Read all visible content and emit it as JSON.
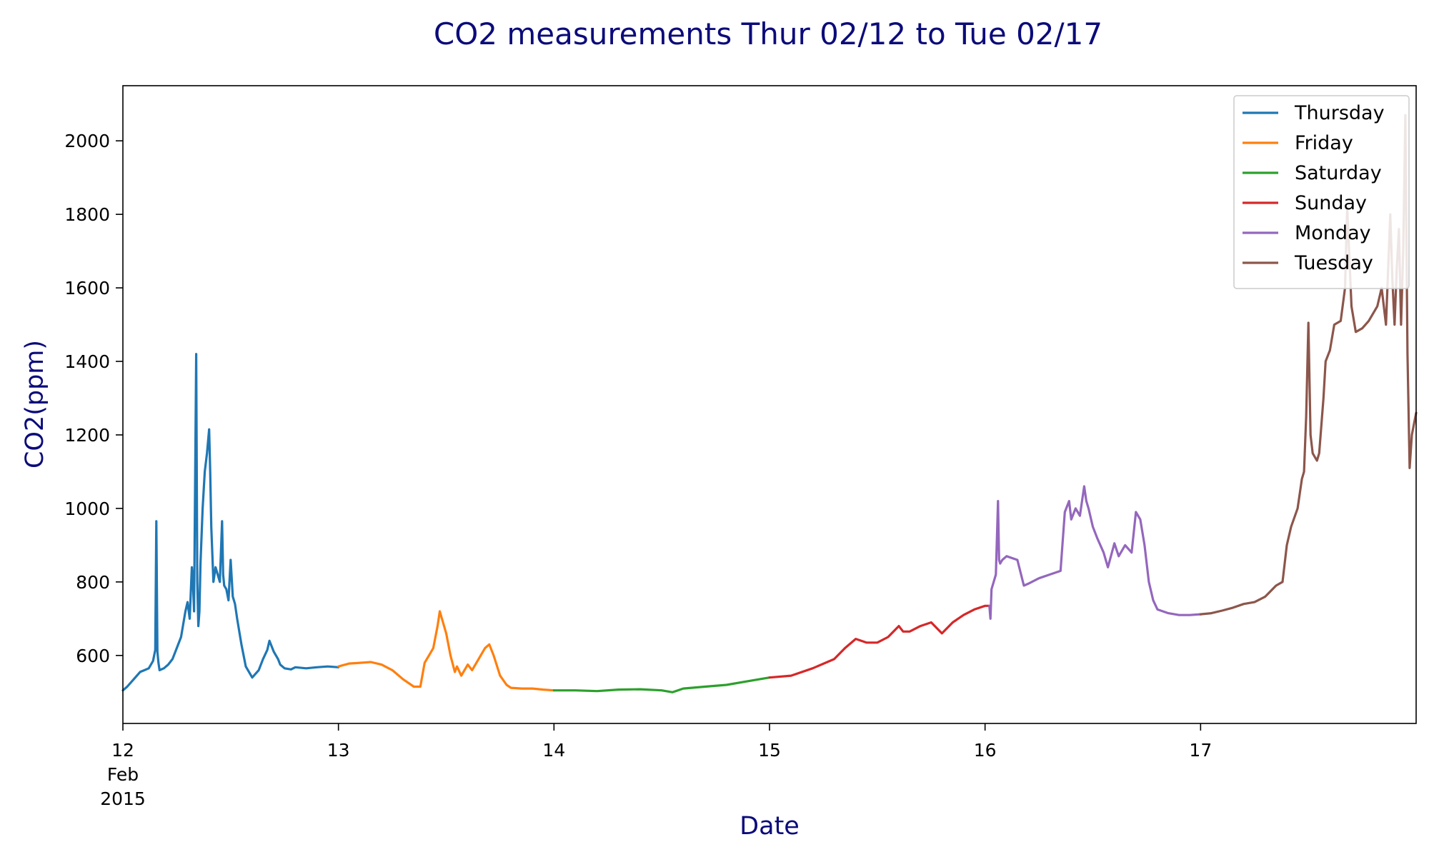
{
  "chart_data": {
    "type": "line",
    "title": "CO2 measurements Thur 02/12 to Tue 02/17",
    "xlabel": "Date",
    "ylabel": "CO2(ppm)",
    "xlim": [
      12.0,
      18.0
    ],
    "ylim": [
      415,
      2150
    ],
    "x_ticks": [
      {
        "value": 12,
        "lines": [
          "12",
          "Feb",
          "2015"
        ]
      },
      {
        "value": 13,
        "lines": [
          "13"
        ]
      },
      {
        "value": 14,
        "lines": [
          "14"
        ]
      },
      {
        "value": 15,
        "lines": [
          "15"
        ]
      },
      {
        "value": 16,
        "lines": [
          "16"
        ]
      },
      {
        "value": 17,
        "lines": [
          "17"
        ]
      }
    ],
    "y_ticks": [
      600,
      800,
      1000,
      1200,
      1400,
      1600,
      1800,
      2000
    ],
    "grid": false,
    "legend_position": "top-right",
    "series": [
      {
        "name": "Thursday",
        "color": "#1f77b4",
        "x": [
          12.0,
          12.02,
          12.05,
          12.08,
          12.1,
          12.12,
          12.14,
          12.15,
          12.155,
          12.16,
          12.165,
          12.17,
          12.19,
          12.21,
          12.23,
          12.25,
          12.27,
          12.29,
          12.3,
          12.31,
          12.32,
          12.325,
          12.33,
          12.34,
          12.345,
          12.35,
          12.355,
          12.36,
          12.37,
          12.38,
          12.39,
          12.4,
          12.405,
          12.41,
          12.42,
          12.43,
          12.44,
          12.45,
          12.46,
          12.465,
          12.47,
          12.48,
          12.49,
          12.5,
          12.51,
          12.515,
          12.52,
          12.53,
          12.55,
          12.57,
          12.6,
          12.63,
          12.65,
          12.67,
          12.68,
          12.7,
          12.72,
          12.73,
          12.75,
          12.78,
          12.8,
          12.85,
          12.9,
          12.95,
          13.0
        ],
        "y": [
          505,
          515,
          535,
          555,
          560,
          565,
          585,
          615,
          965,
          610,
          580,
          560,
          565,
          575,
          590,
          620,
          650,
          720,
          745,
          700,
          840,
          800,
          720,
          1420,
          800,
          680,
          720,
          850,
          1000,
          1100,
          1150,
          1215,
          1100,
          950,
          800,
          840,
          820,
          800,
          965,
          820,
          790,
          780,
          750,
          860,
          760,
          750,
          740,
          700,
          630,
          570,
          540,
          560,
          590,
          615,
          640,
          610,
          590,
          575,
          565,
          562,
          568,
          565,
          568,
          570,
          568
        ]
      },
      {
        "name": "Friday",
        "color": "#ff7f0e",
        "x": [
          13.0,
          13.05,
          13.1,
          13.15,
          13.2,
          13.25,
          13.3,
          13.35,
          13.38,
          13.4,
          13.42,
          13.44,
          13.46,
          13.47,
          13.48,
          13.5,
          13.52,
          13.54,
          13.55,
          13.57,
          13.6,
          13.62,
          13.65,
          13.68,
          13.7,
          13.72,
          13.75,
          13.78,
          13.8,
          13.85,
          13.9,
          13.95,
          14.0
        ],
        "y": [
          570,
          578,
          580,
          582,
          575,
          560,
          535,
          515,
          515,
          580,
          600,
          620,
          680,
          720,
          700,
          660,
          600,
          555,
          570,
          545,
          575,
          560,
          590,
          620,
          630,
          600,
          545,
          520,
          512,
          510,
          510,
          507,
          505
        ]
      },
      {
        "name": "Saturday",
        "color": "#2ca02c",
        "x": [
          14.0,
          14.1,
          14.2,
          14.3,
          14.4,
          14.5,
          14.55,
          14.6,
          14.7,
          14.8,
          14.9,
          15.0
        ],
        "y": [
          505,
          505,
          503,
          507,
          508,
          505,
          500,
          510,
          515,
          520,
          530,
          540
        ]
      },
      {
        "name": "Sunday",
        "color": "#d62728",
        "x": [
          15.0,
          15.1,
          15.2,
          15.3,
          15.35,
          15.4,
          15.45,
          15.5,
          15.55,
          15.6,
          15.62,
          15.65,
          15.7,
          15.75,
          15.8,
          15.85,
          15.9,
          15.95,
          16.0,
          16.02
        ],
        "y": [
          540,
          545,
          565,
          590,
          620,
          645,
          635,
          635,
          650,
          680,
          665,
          665,
          680,
          690,
          660,
          690,
          710,
          725,
          735,
          735
        ]
      },
      {
        "name": "Monday",
        "color": "#9467bd",
        "x": [
          16.02,
          16.025,
          16.03,
          16.05,
          16.06,
          16.065,
          16.07,
          16.08,
          16.1,
          16.15,
          16.18,
          16.2,
          16.25,
          16.3,
          16.35,
          16.37,
          16.39,
          16.4,
          16.42,
          16.44,
          16.46,
          16.47,
          16.48,
          16.5,
          16.52,
          16.55,
          16.57,
          16.6,
          16.62,
          16.65,
          16.68,
          16.7,
          16.72,
          16.74,
          16.76,
          16.78,
          16.8,
          16.85,
          16.9,
          16.95,
          17.0
        ],
        "y": [
          735,
          700,
          780,
          820,
          1020,
          860,
          850,
          860,
          870,
          860,
          790,
          795,
          810,
          820,
          830,
          990,
          1020,
          970,
          1000,
          980,
          1060,
          1020,
          1000,
          950,
          920,
          880,
          840,
          905,
          870,
          900,
          880,
          990,
          970,
          900,
          800,
          750,
          725,
          715,
          710,
          710,
          712
        ]
      },
      {
        "name": "Tuesday",
        "color": "#8c564b",
        "x": [
          17.0,
          17.05,
          17.1,
          17.15,
          17.2,
          17.25,
          17.3,
          17.35,
          17.38,
          17.4,
          17.42,
          17.45,
          17.47,
          17.48,
          17.49,
          17.5,
          17.51,
          17.52,
          17.54,
          17.55,
          17.57,
          17.58,
          17.6,
          17.62,
          17.65,
          17.67,
          17.68,
          17.7,
          17.72,
          17.75,
          17.78,
          17.8,
          17.82,
          17.84,
          17.86,
          17.88,
          17.89,
          17.9,
          17.91,
          17.92,
          17.93,
          17.94,
          17.95,
          17.96,
          17.97,
          17.98,
          18.0
        ],
        "y": [
          712,
          715,
          722,
          730,
          740,
          745,
          760,
          790,
          800,
          900,
          950,
          1000,
          1080,
          1100,
          1250,
          1505,
          1200,
          1150,
          1130,
          1150,
          1300,
          1400,
          1430,
          1500,
          1510,
          1600,
          1820,
          1550,
          1480,
          1490,
          1510,
          1530,
          1550,
          1600,
          1500,
          1800,
          1620,
          1500,
          1650,
          1760,
          1500,
          1700,
          2070,
          1420,
          1110,
          1200,
          1260
        ]
      }
    ]
  }
}
